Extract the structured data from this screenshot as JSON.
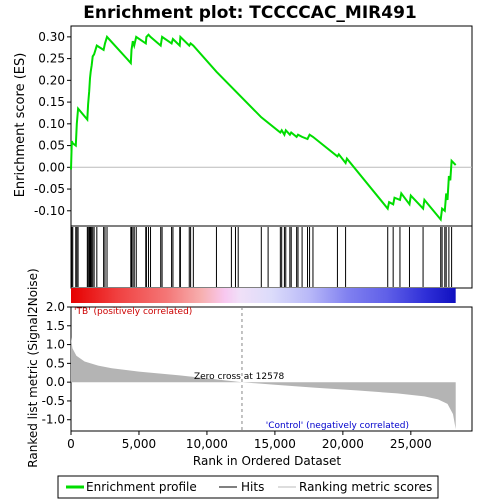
{
  "chart_data": {
    "type": "line",
    "title": "Enrichment plot: TCCCCAC_MIR491",
    "xlabel": "Rank in Ordered Dataset",
    "xlim": [
      0,
      29500
    ],
    "x_ticks": [
      "0",
      "5,000",
      "10,000",
      "15,000",
      "20,000",
      "25,000"
    ],
    "x_tick_values": [
      0,
      5000,
      10000,
      15000,
      20000,
      25000
    ],
    "top_panel": {
      "ylabel": "Enrichment score (ES)",
      "ylim": [
        -0.135,
        0.325
      ],
      "y_ticks": [
        "0.30",
        "0.25",
        "0.20",
        "0.15",
        "0.10",
        "0.05",
        "0.00",
        "-0.05",
        "-0.10"
      ],
      "y_tick_values": [
        0.3,
        0.25,
        0.2,
        0.15,
        0.1,
        0.05,
        0.0,
        -0.05,
        -0.1
      ],
      "series": [
        {
          "name": "Enrichment profile",
          "color": "#00dd00",
          "x": [
            0,
            60,
            130,
            350,
            430,
            520,
            1200,
            1260,
            1340,
            1400,
            1450,
            1520,
            1600,
            1700,
            1900,
            2400,
            2500,
            2650,
            4400,
            4450,
            4550,
            4650,
            4800,
            5500,
            5550,
            5700,
            5850,
            6600,
            6700,
            7400,
            7500,
            8000,
            8050,
            8700,
            8800,
            9000,
            10700,
            14000,
            15400,
            15500,
            15700,
            15800,
            16100,
            16200,
            16600,
            16700,
            17000,
            17400,
            17550,
            17800,
            19600,
            19700,
            20200,
            20300,
            23300,
            23400,
            23700,
            23800,
            24200,
            24300,
            24900,
            25000,
            25900,
            26000,
            27200,
            27300,
            27500,
            27600,
            27700,
            27800,
            27900,
            28000,
            28300
          ],
          "y": [
            -0.005,
            0.06,
            0.055,
            0.05,
            0.1,
            0.135,
            0.11,
            0.145,
            0.175,
            0.205,
            0.22,
            0.235,
            0.255,
            0.26,
            0.28,
            0.27,
            0.285,
            0.3,
            0.24,
            0.27,
            0.29,
            0.28,
            0.3,
            0.285,
            0.3,
            0.305,
            0.3,
            0.28,
            0.3,
            0.285,
            0.295,
            0.28,
            0.3,
            0.28,
            0.285,
            0.28,
            0.22,
            0.115,
            0.08,
            0.085,
            0.075,
            0.085,
            0.075,
            0.08,
            0.07,
            0.075,
            0.07,
            0.065,
            0.075,
            0.07,
            0.025,
            0.03,
            0.01,
            0.02,
            -0.095,
            -0.08,
            -0.085,
            -0.07,
            -0.075,
            -0.06,
            -0.085,
            -0.065,
            -0.095,
            -0.075,
            -0.12,
            -0.095,
            -0.1,
            -0.06,
            -0.075,
            -0.02,
            -0.03,
            0.015,
            0.005
          ]
        }
      ]
    },
    "hits": [
      60,
      130,
      350,
      430,
      520,
      1200,
      1260,
      1340,
      1400,
      1450,
      1520,
      1600,
      1700,
      1900,
      2400,
      2500,
      2650,
      4400,
      4450,
      4550,
      4650,
      4800,
      5500,
      5550,
      5700,
      5850,
      6600,
      6700,
      7400,
      7500,
      8000,
      8050,
      8700,
      8800,
      9000,
      10700,
      11800,
      12100,
      12300,
      14000,
      14500,
      15400,
      15500,
      15700,
      15800,
      16100,
      16200,
      16600,
      16700,
      17000,
      17400,
      17550,
      17800,
      19600,
      20200,
      23300,
      23700,
      24200,
      24900,
      25900,
      27200,
      27300,
      27500,
      27600,
      27800,
      28000
    ],
    "bottom_panel": {
      "ylabel": "Ranked list metric (Signal2Noise)",
      "ylim": [
        -1.3,
        2.0
      ],
      "y_ticks": [
        "2.0",
        "1.5",
        "1.0",
        "0.5",
        "0.0",
        "-0.5",
        "-1.0"
      ],
      "y_tick_values": [
        2.0,
        1.5,
        1.0,
        0.5,
        0.0,
        -0.5,
        -1.0
      ],
      "metric_curve": {
        "x": [
          0,
          100,
          400,
          1000,
          2000,
          3000,
          5000,
          8000,
          10000,
          12578,
          15000,
          18000,
          21000,
          24000,
          26000,
          27000,
          27700,
          28100,
          28300
        ],
        "y": [
          1.2,
          0.9,
          0.7,
          0.55,
          0.44,
          0.37,
          0.28,
          0.18,
          0.1,
          0.0,
          -0.07,
          -0.15,
          -0.22,
          -0.3,
          -0.38,
          -0.46,
          -0.58,
          -0.85,
          -1.25
        ]
      },
      "zero_cross_label": "Zero cross at 12578",
      "zero_cross_x": 12578,
      "pos_label": "'TB' (positively correlated)",
      "neg_label": "'Control' (negatively correlated)"
    },
    "legend": {
      "placement": "bottom",
      "items": [
        {
          "label": "Enrichment profile",
          "color": "#00dd00",
          "kind": "thick-line"
        },
        {
          "label": "Hits",
          "color": "#000000",
          "kind": "line"
        },
        {
          "label": "Ranking metric scores",
          "color": "#bbbbbb",
          "kind": "line"
        }
      ]
    },
    "colors": {
      "profile": "#00dd00",
      "metric_fill": "#b4b4b4",
      "pos_text": "#cc0000",
      "neg_text": "#0000cc",
      "zero_line": "#888888"
    }
  }
}
